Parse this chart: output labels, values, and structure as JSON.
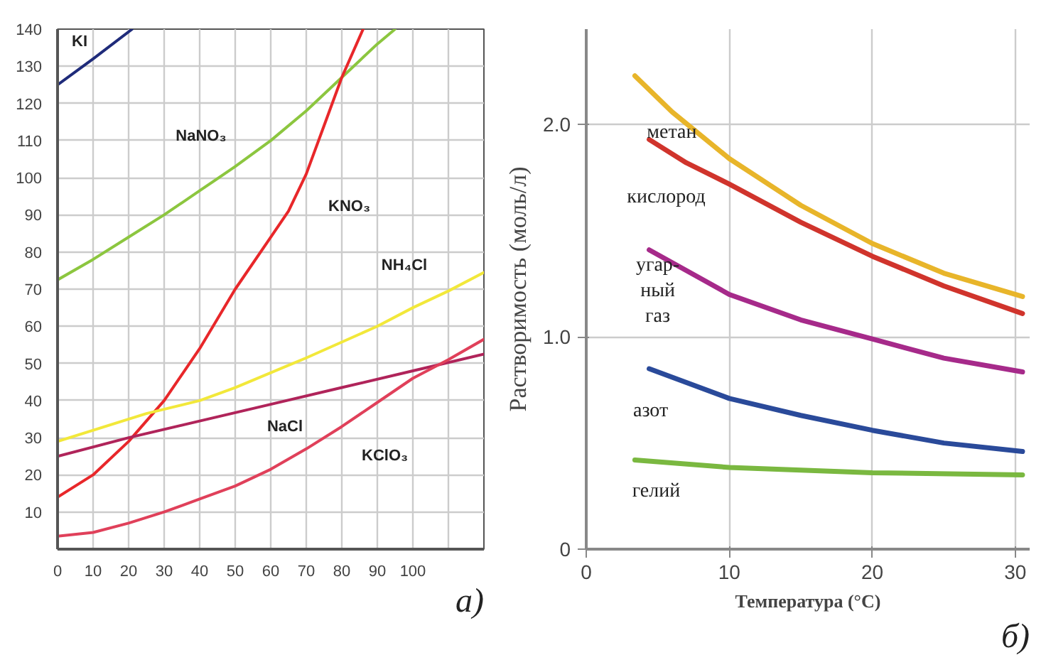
{
  "chart_data": [
    {
      "type": "line",
      "xlim": [
        0,
        120
      ],
      "ylim": [
        0,
        140
      ],
      "xticks": [
        0,
        10,
        20,
        30,
        40,
        50,
        60,
        70,
        80,
        90,
        100,
        {
          "value": 110,
          "label": null
        }
      ],
      "yticks": [
        10,
        20,
        30,
        40,
        50,
        60,
        70,
        80,
        90,
        100,
        110,
        120,
        130,
        140
      ],
      "grid": true,
      "annotations": [
        "а)"
      ],
      "series": [
        {
          "name": "KI",
          "color": "#1f2b7a",
          "x": [
            0,
            10,
            21
          ],
          "values": [
            125,
            132,
            140
          ]
        },
        {
          "name": "NaNO₃",
          "color": "#8cc63f",
          "x": [
            0,
            10,
            20,
            30,
            40,
            50,
            60,
            70,
            80,
            90,
            95
          ],
          "values": [
            72.5,
            78,
            84,
            90,
            96.5,
            103,
            110,
            118,
            127,
            136,
            140
          ]
        },
        {
          "name": "KNO₃",
          "color": "#e8272a",
          "x": [
            0,
            10,
            20,
            30,
            40,
            50,
            60,
            65,
            70,
            75,
            80,
            86
          ],
          "values": [
            14,
            20,
            29,
            40,
            54,
            70,
            84,
            91,
            101,
            114,
            127,
            140
          ]
        },
        {
          "name": "NH₄Cl",
          "color": "#f2e83a",
          "x": [
            0,
            25,
            40,
            50,
            70,
            90,
            100,
            110,
            120
          ],
          "values": [
            29,
            36.5,
            40,
            43.5,
            51.5,
            60,
            65,
            69.5,
            74.5
          ]
        },
        {
          "name": "NaCl",
          "color": "#b0245a",
          "x": [
            0,
            20,
            40,
            60,
            80,
            100,
            120
          ],
          "values": [
            25,
            30,
            34.5,
            39,
            43.5,
            48,
            52.5
          ]
        },
        {
          "name": "KClO₃",
          "color": "#e0405a",
          "x": [
            0,
            10,
            20,
            30,
            40,
            50,
            60,
            70,
            80,
            90,
            100,
            110,
            120
          ],
          "values": [
            3.5,
            4.5,
            7,
            10,
            13.5,
            17,
            21.5,
            27,
            33,
            39.5,
            46,
            51,
            56.5
          ]
        }
      ]
    },
    {
      "type": "line",
      "xlim": [
        0,
        31
      ],
      "ylim": [
        0,
        2.45
      ],
      "xticks": [
        0,
        10,
        20,
        30
      ],
      "yticks": [
        0,
        {
          "value": 1,
          "label": "1.0"
        },
        {
          "value": 2,
          "label": "2.0"
        }
      ],
      "grid": true,
      "xlabel": "Температура (°C)",
      "ylabel": "Растворимость (моль/л)",
      "annotations": [
        "б)"
      ],
      "series": [
        {
          "name": "метан",
          "color": "#e8b52a",
          "x": [
            3.4,
            6,
            10,
            15,
            20,
            25,
            30.5
          ],
          "values": [
            2.23,
            2.06,
            1.84,
            1.62,
            1.44,
            1.3,
            1.19
          ]
        },
        {
          "name": "кислород",
          "color": "#d0342c",
          "x": [
            4.4,
            7,
            10,
            15,
            20,
            25,
            30.5
          ],
          "values": [
            1.93,
            1.82,
            1.72,
            1.54,
            1.38,
            1.24,
            1.11
          ]
        },
        {
          "name": "угар-\nный\nгаз",
          "color": "#a62a8a",
          "x": [
            4.4,
            10,
            15,
            20,
            25,
            30.5
          ],
          "values": [
            1.41,
            1.2,
            1.08,
            0.99,
            0.9,
            0.835
          ]
        },
        {
          "name": "азот",
          "color": "#2a4a9a",
          "x": [
            4.4,
            10,
            15,
            20,
            25,
            30.5
          ],
          "values": [
            0.85,
            0.71,
            0.63,
            0.56,
            0.5,
            0.46
          ]
        },
        {
          "name": "гелий",
          "color": "#7ab840",
          "x": [
            3.4,
            10,
            20,
            30.5
          ],
          "values": [
            0.42,
            0.385,
            0.36,
            0.35
          ]
        }
      ]
    }
  ]
}
